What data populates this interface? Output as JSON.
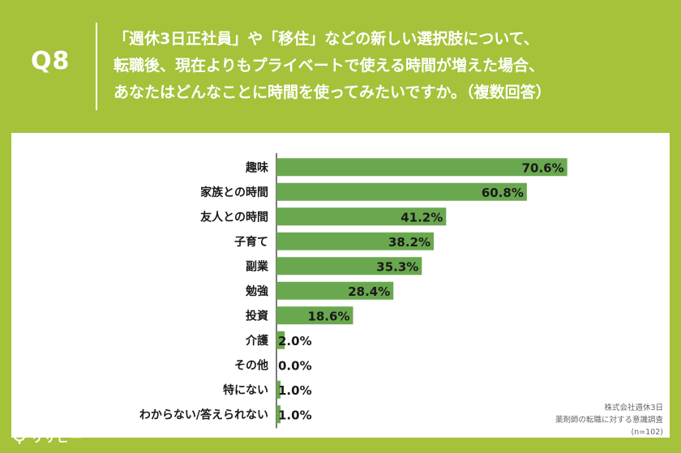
{
  "question": {
    "number": "Q8",
    "lines": [
      "「週休3日正社員」や「移住」などの新しい選択肢について、",
      "転職後、現在よりもプライベートで使える時間が増えた場合、",
      "あなたはどんなことに時間を使ってみたいですか。（複数回答）"
    ]
  },
  "chart_data": {
    "type": "bar",
    "orientation": "horizontal",
    "categories": [
      "趣味",
      "家族との時間",
      "友人との時間",
      "子育て",
      "副業",
      "勉強",
      "投資",
      "介護",
      "その他",
      "特にない",
      "わからない/答えられない"
    ],
    "values": [
      70.6,
      60.8,
      41.2,
      38.2,
      35.3,
      28.4,
      18.6,
      2.0,
      0.0,
      1.0,
      1.0
    ],
    "value_labels": [
      "70.6%",
      "60.8%",
      "41.2%",
      "38.2%",
      "35.3%",
      "28.4%",
      "18.6%",
      "2.0%",
      "0.0%",
      "1.0%",
      "1.0%"
    ],
    "unit": "%",
    "xlim": [
      0,
      100
    ],
    "bar_color": "#6aa84f",
    "grid": false
  },
  "source": {
    "lines": [
      "株式会社週休3日",
      "薬剤師の転職に対する意識調査",
      "(n=102)"
    ]
  },
  "brand": {
    "logo_text": "リサピー",
    "logo_icon": "lightbulb-icon",
    "text_color": "#ffffff"
  },
  "colors": {
    "background": "#a5c23a",
    "panel": "#ffffff",
    "bar": "#6aa84f",
    "axis": "#222222"
  }
}
